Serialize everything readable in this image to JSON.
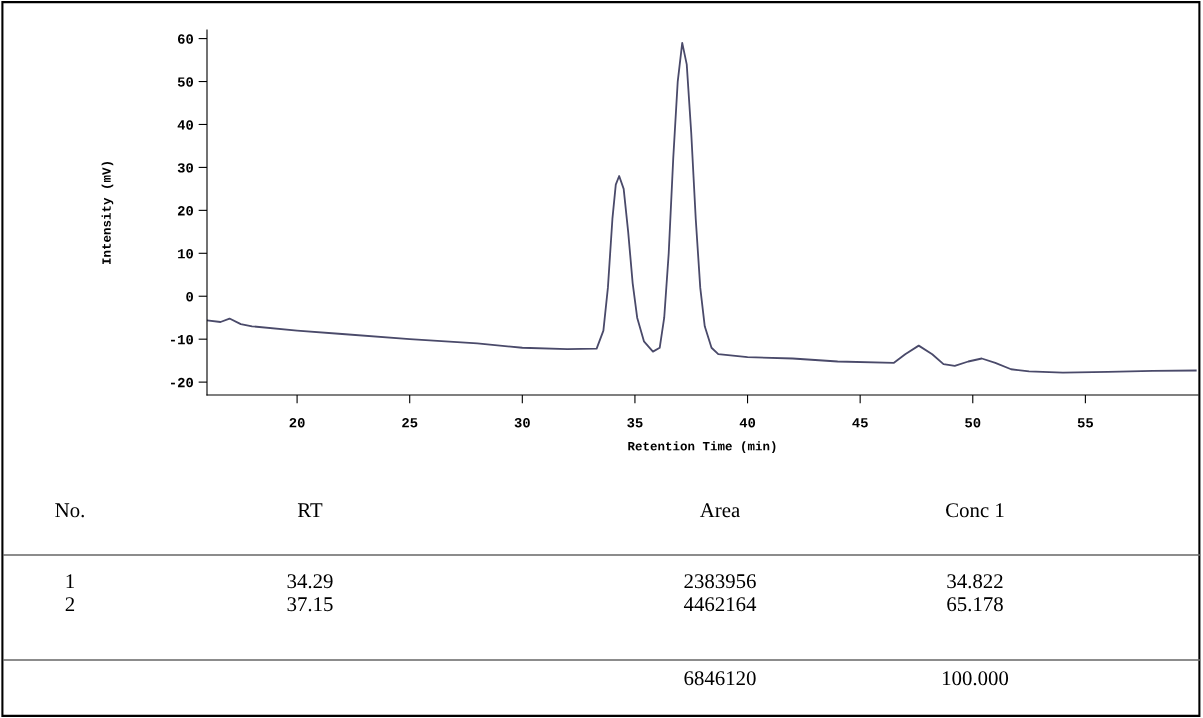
{
  "chart_data": {
    "type": "line",
    "xlabel": "Retention Time (min)",
    "ylabel": "Intensity (mV)",
    "x": [
      16,
      16.6,
      17,
      17.5,
      18,
      20,
      22,
      25,
      28,
      30,
      32,
      33.3,
      33.6,
      33.8,
      34.0,
      34.15,
      34.3,
      34.5,
      34.7,
      34.9,
      35.1,
      35.4,
      35.8,
      36.1,
      36.3,
      36.5,
      36.7,
      36.9,
      37.1,
      37.3,
      37.5,
      37.7,
      37.9,
      38.1,
      38.4,
      38.7,
      40,
      42,
      44,
      46.5,
      47,
      47.6,
      48.2,
      48.7,
      49.2,
      49.8,
      50.4,
      51,
      51.7,
      52.5,
      54,
      56,
      58,
      59.9
    ],
    "series": [
      {
        "color": "#4a4a6a",
        "values": [
          -5.6,
          -6,
          -5.2,
          -6.5,
          -7,
          -8,
          -8.8,
          -10,
          -11,
          -12,
          -12.3,
          -12.2,
          -8,
          2,
          18,
          26,
          28,
          25,
          15,
          3,
          -5,
          -10.5,
          -12.9,
          -12,
          -5,
          10,
          32,
          50,
          59,
          54,
          38,
          18,
          2,
          -7,
          -12,
          -13.5,
          -14.2,
          -14.5,
          -15.2,
          -15.5,
          -13.5,
          -11.5,
          -13.5,
          -15.8,
          -16.2,
          -15.2,
          -14.5,
          -15.5,
          -17,
          -17.5,
          -17.8,
          -17.6,
          -17.4,
          -17.3
        ]
      }
    ],
    "xlim": [
      16,
      60
    ],
    "xticks": [
      20,
      25,
      30,
      35,
      40,
      45,
      50,
      55
    ],
    "ylim": [
      -23,
      62
    ],
    "yticks": [
      -20,
      -10,
      0,
      10,
      20,
      30,
      40,
      50,
      60
    ],
    "grid": false,
    "legend": false,
    "marker": "none",
    "line_style": "solid",
    "annotations": [
      "No.",
      "RT",
      "Area",
      "Conc 1",
      "1",
      "34.29",
      "2383956",
      "34.822",
      "2",
      "37.15",
      "4462164",
      "65.178",
      "6846120",
      "100.000"
    ]
  }
}
